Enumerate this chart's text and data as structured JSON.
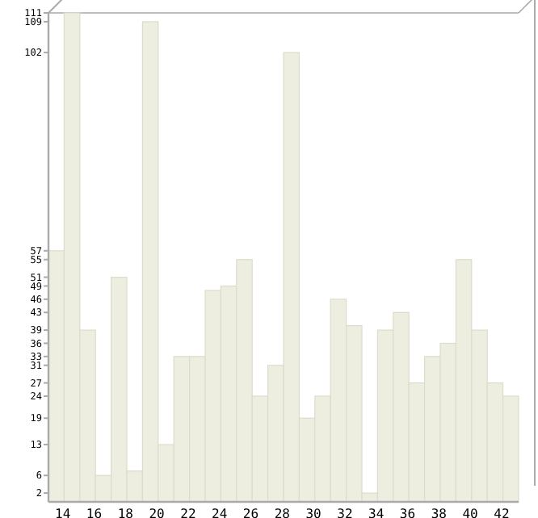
{
  "chart_data": {
    "type": "bar",
    "categories": [
      "14",
      null,
      "16",
      null,
      "18",
      null,
      "20",
      null,
      "22",
      null,
      "24",
      null,
      "26",
      null,
      "28",
      null,
      "30",
      null,
      "32",
      null,
      "34",
      null,
      "36",
      null,
      "38",
      null,
      "40",
      null,
      "42",
      null
    ],
    "values": [
      57,
      111,
      39,
      6,
      51,
      7,
      109,
      13,
      33,
      33,
      48,
      49,
      55,
      24,
      31,
      102,
      19,
      24,
      46,
      40,
      2,
      39,
      43,
      27,
      33,
      36,
      55,
      39,
      27,
      24
    ],
    "color": "#eeeee0",
    "ylim": [
      0,
      111
    ],
    "yticks": [
      2,
      6,
      13,
      19,
      24,
      27,
      31,
      33,
      36,
      39,
      43,
      46,
      49,
      51,
      55,
      57,
      102,
      109,
      111
    ],
    "grid": false
  }
}
